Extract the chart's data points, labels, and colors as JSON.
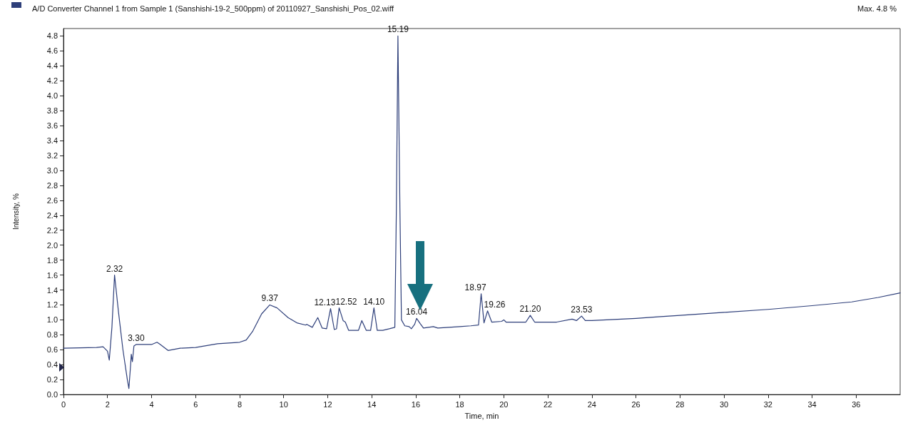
{
  "chart_data": {
    "type": "line",
    "title": "A/D Converter Channel 1 from Sample 1 (Sanshishi-19-2_500ppm) of 20110927_Sanshishi_Pos_02.wiff",
    "xlabel": "Time, min",
    "ylabel": "Intensity, %",
    "annotations": [
      "Max. 4.8 %",
      {
        "text": "2.32",
        "x": 2.32,
        "y": 1.6
      },
      {
        "text": "3.30",
        "x": 3.3,
        "y": 0.67
      },
      {
        "text": "9.37",
        "x": 9.37,
        "y": 1.2
      },
      {
        "text": "12.13",
        "x": 12.13,
        "y": 1.15
      },
      {
        "text": "12.52",
        "x": 12.52,
        "y": 1.16
      },
      {
        "text": "14.10",
        "x": 14.1,
        "y": 1.16
      },
      {
        "text": "15.19",
        "x": 15.19,
        "y": 4.8
      },
      {
        "text": "16.04",
        "x": 16.04,
        "y": 1.02
      },
      {
        "text": "18.97",
        "x": 18.97,
        "y": 1.35
      },
      {
        "text": "19.26",
        "x": 19.26,
        "y": 1.12
      },
      {
        "text": "21.20",
        "x": 21.2,
        "y": 1.06
      },
      {
        "text": "23.53",
        "x": 23.53,
        "y": 1.05
      }
    ],
    "series": [
      {
        "color": "#2e3f7a",
        "x": [
          0,
          1.5,
          1.8,
          2.0,
          2.08,
          2.2,
          2.32,
          2.5,
          2.7,
          2.9,
          2.97,
          3.05,
          3.08,
          3.13,
          3.2,
          3.3,
          3.6,
          4.0,
          4.25,
          4.4,
          4.75,
          5.3,
          6,
          7,
          8,
          8.3,
          8.6,
          9.0,
          9.37,
          9.7,
          10.2,
          10.6,
          11.0,
          11.05,
          11.3,
          11.55,
          11.75,
          11.95,
          12.13,
          12.3,
          12.4,
          12.52,
          12.7,
          12.8,
          12.95,
          13.4,
          13.55,
          13.75,
          13.95,
          14.1,
          14.25,
          14.5,
          14.8,
          15.05,
          15.12,
          15.19,
          15.28,
          15.35,
          15.5,
          15.7,
          15.8,
          15.95,
          16.04,
          16.2,
          16.35,
          16.8,
          17,
          17.5,
          18,
          18.5,
          18.85,
          18.97,
          19.1,
          19.26,
          19.45,
          19.9,
          20.0,
          20.1,
          20.5,
          21.0,
          21.2,
          21.4,
          22.4,
          23.1,
          23.3,
          23.53,
          23.7,
          24,
          26,
          27,
          28,
          30,
          32,
          34,
          35.8,
          37,
          38
        ],
        "values": [
          0.62,
          0.63,
          0.64,
          0.58,
          0.46,
          0.9,
          1.6,
          1.1,
          0.6,
          0.2,
          0.08,
          0.4,
          0.54,
          0.44,
          0.65,
          0.67,
          0.67,
          0.67,
          0.7,
          0.67,
          0.59,
          0.62,
          0.63,
          0.68,
          0.7,
          0.73,
          0.85,
          1.08,
          1.2,
          1.16,
          1.03,
          0.96,
          0.93,
          0.94,
          0.9,
          1.03,
          0.89,
          0.88,
          1.15,
          0.87,
          0.88,
          1.16,
          0.99,
          0.97,
          0.86,
          0.86,
          0.99,
          0.86,
          0.86,
          1.16,
          0.86,
          0.86,
          0.88,
          0.9,
          2.5,
          4.8,
          2.5,
          1.0,
          0.92,
          0.91,
          0.88,
          0.94,
          1.02,
          0.95,
          0.89,
          0.91,
          0.89,
          0.9,
          0.91,
          0.92,
          0.93,
          1.35,
          0.96,
          1.12,
          0.97,
          0.98,
          1.0,
          0.97,
          0.97,
          0.97,
          1.06,
          0.97,
          0.97,
          1.01,
          0.99,
          1.05,
          0.99,
          0.99,
          1.02,
          1.04,
          1.06,
          1.1,
          1.14,
          1.19,
          1.24,
          1.3,
          1.36
        ]
      }
    ],
    "xlim": [
      0,
      38
    ],
    "xticks": [
      0,
      2,
      4,
      6,
      8,
      10,
      12,
      14,
      16,
      18,
      20,
      22,
      24,
      26,
      28,
      30,
      32,
      34,
      36
    ],
    "ylim": [
      0,
      4.9
    ],
    "yticks": [
      {
        "value": 0,
        "label": "0.0"
      },
      {
        "value": 0.2,
        "label": "0.2"
      },
      {
        "value": 0.4,
        "label": "0.4"
      },
      {
        "value": 0.6,
        "label": "0.6"
      },
      {
        "value": 0.8,
        "label": "0.8"
      },
      {
        "value": 1,
        "label": "1.0"
      },
      {
        "value": 1.2,
        "label": "1.2"
      },
      {
        "value": 1.4,
        "label": "1.4"
      },
      {
        "value": 1.6,
        "label": "1.6"
      },
      {
        "value": 1.8,
        "label": "1.8"
      },
      {
        "value": 2,
        "label": "2.0"
      },
      {
        "value": 2.2,
        "label": "2.2"
      },
      {
        "value": 2.4,
        "label": "2.4"
      },
      {
        "value": 2.6,
        "label": "2.6"
      },
      {
        "value": 2.8,
        "label": "2.8"
      },
      {
        "value": 3,
        "label": "3.0"
      },
      {
        "value": 3.2,
        "label": "3.2"
      },
      {
        "value": 3.4,
        "label": "3.4"
      },
      {
        "value": 3.6,
        "label": "3.6"
      },
      {
        "value": 3.8,
        "label": "3.8"
      },
      {
        "value": 4,
        "label": "4.0"
      },
      {
        "value": 4.2,
        "label": "4.2"
      },
      {
        "value": 4.4,
        "label": "4.4"
      },
      {
        "value": 4.6,
        "label": "4.6"
      },
      {
        "value": 4.8,
        "label": "4.8"
      }
    ],
    "grid": false,
    "marker": "none",
    "line_style": "solid"
  }
}
